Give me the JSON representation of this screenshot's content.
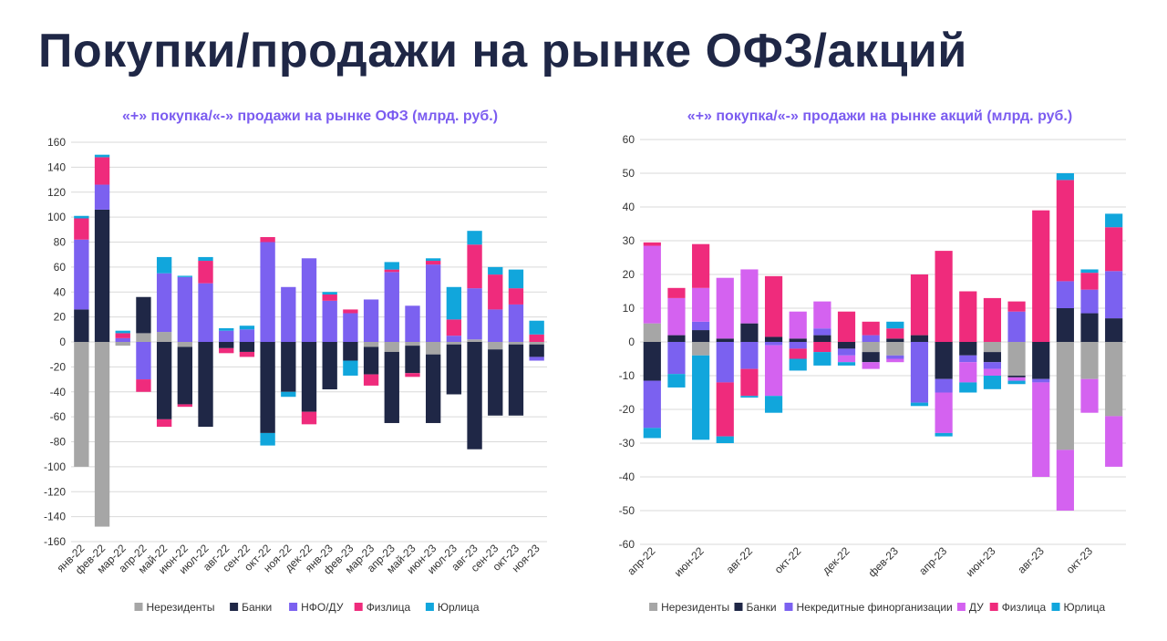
{
  "page": {
    "title": "Покупки/продажи на рынке ОФЗ/акций"
  },
  "chart_data": [
    {
      "type": "bar",
      "stacked": true,
      "title": "«+» покупка/«-» продажи на рынке ОФЗ (млрд. руб.)",
      "ylim": [
        -160,
        160
      ],
      "yticks": [
        -160,
        -140,
        -120,
        -100,
        -80,
        -60,
        -40,
        -20,
        0,
        20,
        40,
        60,
        80,
        100,
        120,
        140,
        160
      ],
      "grid": true,
      "legend_position": "bottom",
      "categories": [
        "янв-22",
        "фев-22",
        "мар-22",
        "апр-22",
        "май-22",
        "июн-22",
        "июл-22",
        "авг-22",
        "сен-22",
        "окт-22",
        "ноя-22",
        "дек-22",
        "янв-23",
        "фев-23",
        "мар-23",
        "апр-23",
        "май-23",
        "июн-23",
        "июл-23",
        "авг-23",
        "сен-23",
        "окт-23",
        "ноя-23"
      ],
      "series": [
        {
          "name": "Нерезиденты",
          "color": "#a6a6a6",
          "values": [
            -100,
            -148,
            -3,
            7,
            8,
            -4,
            0,
            0,
            0,
            0,
            0,
            0,
            0,
            0,
            -4,
            -8,
            -3,
            -10,
            -2,
            2,
            -6,
            -2,
            -2
          ]
        },
        {
          "name": "Банки",
          "color": "#1f2746",
          "values": [
            26,
            106,
            0,
            29,
            -62,
            -46,
            -68,
            -5,
            -8,
            -73,
            -40,
            -56,
            -38,
            -15,
            -22,
            -57,
            -22,
            -55,
            -40,
            -86,
            -53,
            -57,
            -10
          ]
        },
        {
          "name": "НФО/ДУ",
          "color": "#7b61f0",
          "values": [
            56,
            20,
            3,
            -30,
            47,
            52,
            47,
            9,
            10,
            80,
            44,
            67,
            33,
            23,
            34,
            56,
            29,
            62,
            5,
            41,
            26,
            30,
            -3
          ]
        },
        {
          "name": "Физлица",
          "color": "#ef2b7c",
          "values": [
            17,
            22,
            4,
            -10,
            -6,
            -2,
            18,
            -4,
            -4,
            4,
            0,
            -10,
            5,
            3,
            -9,
            2,
            -3,
            3,
            13,
            35,
            28,
            13,
            6
          ]
        },
        {
          "name": "Юрлица",
          "color": "#11a6dc",
          "values": [
            2,
            2,
            2,
            0,
            13,
            1,
            3,
            2,
            3,
            -10,
            -4,
            0,
            2,
            -12,
            0,
            6,
            0,
            2,
            26,
            11,
            6,
            15,
            11
          ]
        }
      ]
    },
    {
      "type": "bar",
      "stacked": true,
      "title": "«+» покупка/«-» продажи на рынке акций (млрд. руб.)",
      "ylim": [
        -60,
        60
      ],
      "yticks": [
        -60,
        -50,
        -40,
        -30,
        -20,
        -10,
        0,
        10,
        20,
        30,
        40,
        50,
        60
      ],
      "grid": true,
      "legend_position": "bottom",
      "categories": [
        "апр-22",
        "май-22",
        "июн-22",
        "июл-22",
        "авг-22",
        "сен-22",
        "окт-22",
        "ноя-22",
        "дек-22",
        "янв-23",
        "фев-23",
        "мар-23",
        "апр-23",
        "май-23",
        "июн-23",
        "июл-23",
        "авг-23",
        "сен-23",
        "окт-23",
        "ноя-23"
      ],
      "xtick_labels": [
        "апр-22",
        "",
        "июн-22",
        "",
        "авг-22",
        "",
        "окт-22",
        "",
        "дек-22",
        "",
        "фев-23",
        "",
        "апр-23",
        "",
        "июн-23",
        "",
        "авг-23",
        "",
        "окт-23",
        ""
      ],
      "series": [
        {
          "name": "Нерезиденты",
          "color": "#a6a6a6",
          "values": [
            5.5,
            0,
            -4,
            0,
            0,
            0,
            0,
            0,
            0,
            -3,
            -4,
            0,
            0,
            0,
            -3,
            -10,
            0,
            -32,
            -11,
            -22
          ]
        },
        {
          "name": "Банки",
          "color": "#1f2746",
          "values": [
            -11.5,
            2,
            3.5,
            1,
            5.5,
            1.5,
            1,
            2,
            -2,
            -3,
            1,
            2,
            -11,
            -4,
            -3,
            -0.5,
            -11,
            10,
            8.5,
            7
          ]
        },
        {
          "name": "Некредитные финорганизации",
          "color": "#7b61f0",
          "values": [
            -14,
            -9.5,
            2.5,
            -12,
            -8,
            -1,
            -2,
            2,
            -2,
            2,
            -1,
            -18,
            -4,
            -2,
            -2,
            9,
            -1,
            8,
            7,
            14
          ]
        },
        {
          "name": "ДУ",
          "color": "#d462f0",
          "values": [
            23,
            11,
            10,
            18,
            16,
            -15,
            8,
            8,
            -2,
            -2,
            -1,
            0,
            -12,
            -6,
            -2,
            -1,
            -28,
            -18,
            -10,
            -15
          ]
        },
        {
          "name": "Физлица",
          "color": "#ef2b7c",
          "values": [
            1,
            3,
            13,
            -16,
            -8,
            18,
            -3,
            -3,
            9,
            4,
            3,
            18,
            27,
            15,
            13,
            3,
            39,
            30,
            5,
            13
          ]
        },
        {
          "name": "Юрлица",
          "color": "#11a6dc",
          "values": [
            -3,
            -4,
            -25,
            -2,
            -0.5,
            -5,
            -3.5,
            -4,
            -1,
            0,
            2,
            -1,
            -1,
            -3,
            -4,
            -1,
            0,
            2,
            1,
            4
          ]
        }
      ]
    }
  ]
}
